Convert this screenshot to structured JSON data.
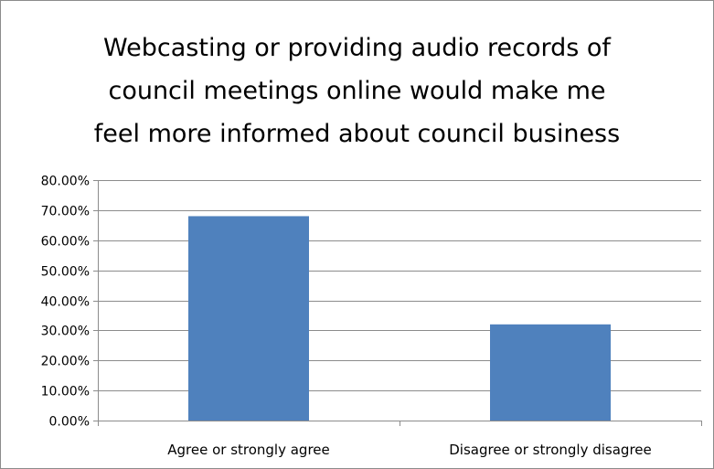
{
  "chart_data": {
    "type": "bar",
    "title_lines": [
      "Webcasting or providing audio records of",
      "council meetings online would make me",
      "feel more informed about council business"
    ],
    "categories": [
      "Agree or strongly agree",
      "Disagree or strongly disagree"
    ],
    "values": [
      0.68,
      0.32
    ],
    "ylim": [
      0,
      0.8
    ],
    "yticks": [
      0,
      0.1,
      0.2,
      0.3,
      0.4,
      0.5,
      0.6,
      0.7,
      0.8
    ],
    "ytick_labels": [
      "0.00%",
      "10.00%",
      "20.00%",
      "30.00%",
      "40.00%",
      "50.00%",
      "60.00%",
      "70.00%",
      "80.00%"
    ],
    "xlabel": "",
    "ylabel": "",
    "grid": true,
    "legend": "none",
    "colors": {
      "bar": "#4f81bd",
      "grid": "#8c8c8c",
      "axis": "#8c8c8c"
    }
  }
}
